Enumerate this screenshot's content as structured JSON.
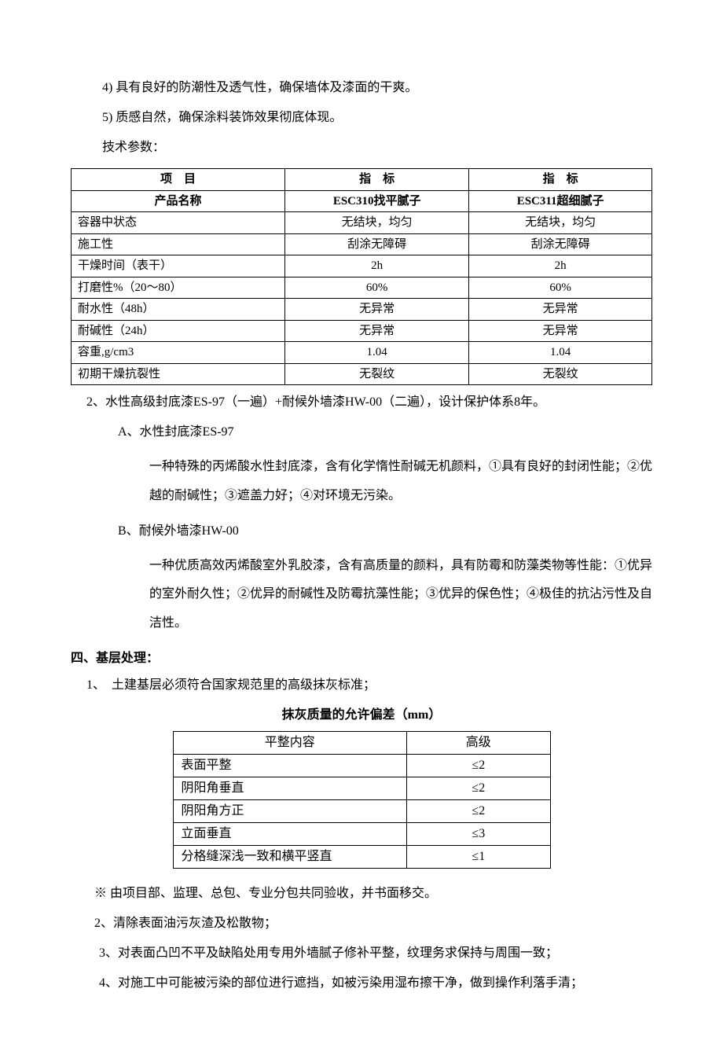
{
  "paragraphs": {
    "p1": "4) 具有良好的防潮性及透气性，确保墙体及漆面的干爽。",
    "p2": "5) 质感自然，确保涂料装饰效果彻底体现。",
    "p3": "技术参数：",
    "p4": "2、水性高级封底漆ES-97（一遍）+耐候外墙漆HW-00（二遍），设计保护体系8年。",
    "p5": "A、水性封底漆ES-97",
    "p6": "一种特殊的丙烯酸水性封底漆，含有化学惰性耐碱无机颜料，①具有良好的封闭性能；②优越的耐碱性；③遮盖力好；④对环境无污染。",
    "p7": "B、耐候外墙漆HW-00",
    "p8": "一种优质高效丙烯酸室外乳胶漆，含有高质量的颜料，具有防霉和防藻类物等性能：①优异的室外耐久性；②优异的耐碱性及防霉抗藻性能；③优异的保色性；④极佳的抗沾污性及自洁性。",
    "section4_title": "四、基层处理：",
    "p9": "1、　土建基层必须符合国家规范里的高级抹灰标准；",
    "table2_title": "抹灰质量的允许偏差（mm）",
    "p10": "※ 由项目部、监理、总包、专业分包共同验收，并书面移交。",
    "p11": "2、清除表面油污灰渣及松散物；",
    "p12": "3、对表面凸凹不平及缺陷处用专用外墙腻子修补平整，纹理务求保持与周围一致；",
    "p13": "4、对施工中可能被污染的部位进行遮挡，如被污染用湿布擦干净，做到操作利落手清；"
  },
  "spec_table": {
    "header": {
      "col1": "项　目",
      "col2": "指　标",
      "col3": "指　标"
    },
    "product_row": {
      "col1": "产品名称",
      "col2": "ESC310找平腻子",
      "col3": "ESC311超细腻子"
    },
    "rows": [
      {
        "label": "容器中状态",
        "v1": "无结块，均匀",
        "v2": "无结块，均匀"
      },
      {
        "label": "施工性",
        "v1": "刮涂无障碍",
        "v2": "刮涂无障碍"
      },
      {
        "label": "干燥时间（表干）",
        "v1": "2h",
        "v2": "2h"
      },
      {
        "label": "打磨性%（20～80）",
        "v1": "60%",
        "v2": "60%"
      },
      {
        "label": "耐水性（48h）",
        "v1": "无异常",
        "v2": "无异常"
      },
      {
        "label": "耐碱性（24h）",
        "v1": "无异常",
        "v2": "无异常"
      },
      {
        "label": "容重,g/cm3",
        "v1": "1.04",
        "v2": "1.04"
      },
      {
        "label": "初期干燥抗裂性",
        "v1": "无裂纹",
        "v2": "无裂纹"
      }
    ]
  },
  "tolerance_table": {
    "header": {
      "col1": "平整内容",
      "col2": "高级"
    },
    "rows": [
      {
        "label": "表面平整",
        "v": "≤2"
      },
      {
        "label": "阴阳角垂直",
        "v": "≤2"
      },
      {
        "label": "阴阳角方正",
        "v": "≤2"
      },
      {
        "label": "立面垂直",
        "v": "≤3"
      },
      {
        "label": "分格缝深浅一致和横平竖直",
        "v": "≤1"
      }
    ]
  },
  "styles": {
    "body_font_size": 16,
    "table_font_size": 15,
    "text_color": "#000000",
    "background_color": "#ffffff",
    "border_color": "#000000"
  }
}
